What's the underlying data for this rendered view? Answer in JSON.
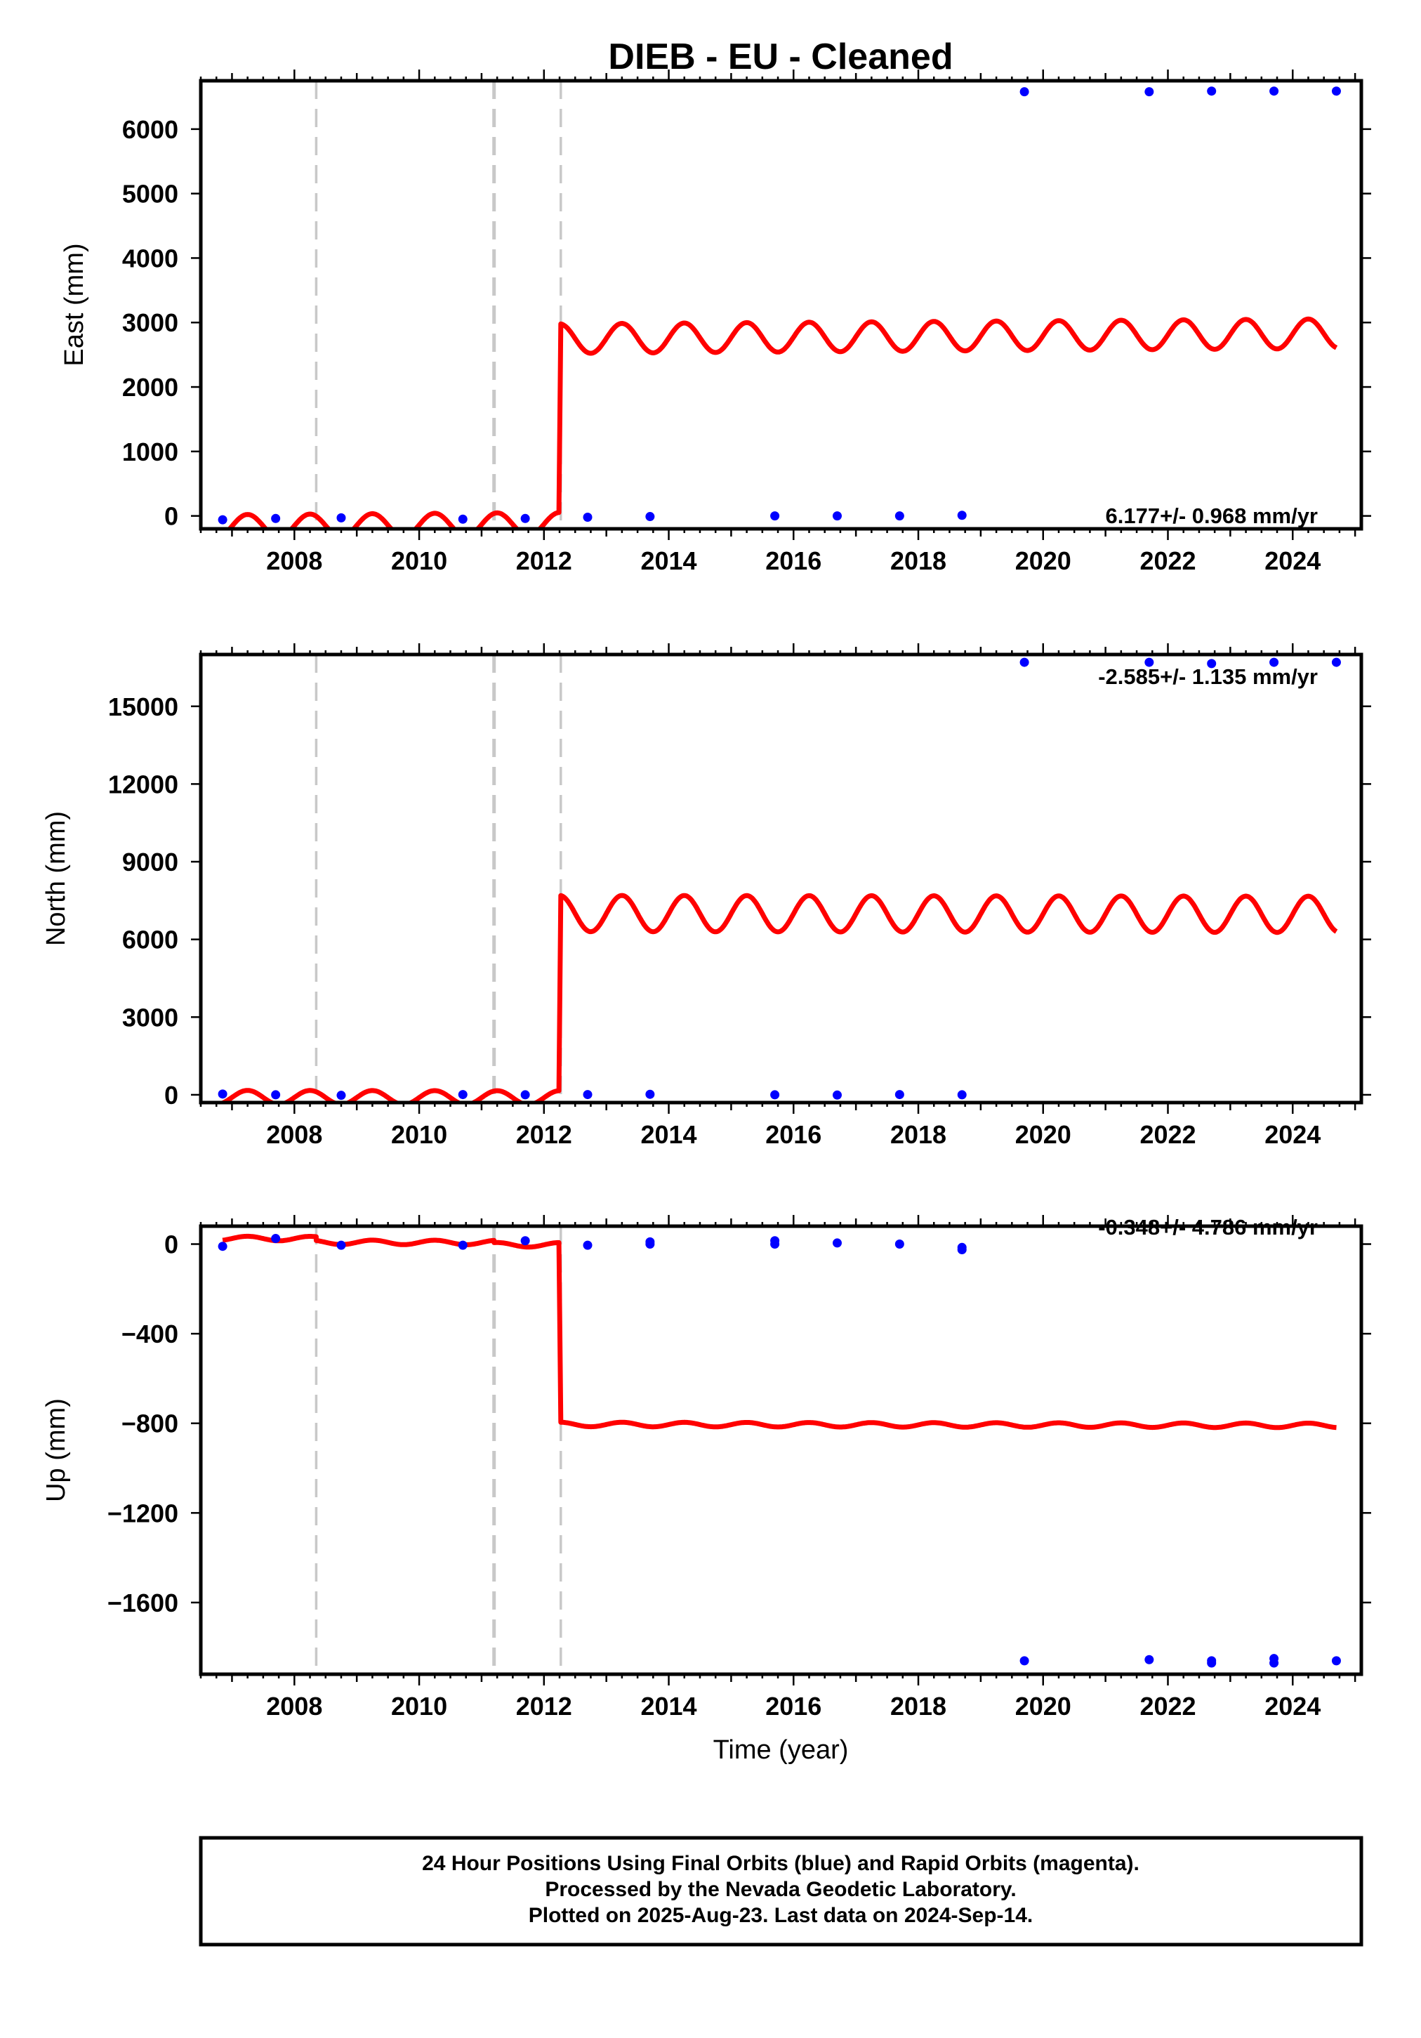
{
  "chart_data": {
    "type": "scatter",
    "title": "DIEB  - EU - Cleaned",
    "xlabel": "Time (year)",
    "xlim": [
      2006.5,
      2025.1
    ],
    "x_ticks": [
      2008,
      2010,
      2012,
      2014,
      2016,
      2018,
      2020,
      2022,
      2024
    ],
    "colors": {
      "observations": "#0000ff",
      "model": "#ff0000",
      "equipment_change": "#c8c8c8"
    },
    "event_lines_x": [
      2008.35,
      2011.2,
      2012.27
    ],
    "footer": [
      "24 Hour Positions Using Final Orbits (blue) and Rapid Orbits (magenta).",
      "Processed by the Nevada Geodetic Laboratory.",
      "Plotted on 2025-Aug-23. Last data on 2024-Sep-14."
    ],
    "panels": [
      {
        "ylabel": "East (mm)",
        "rate": "6.177+/- 0.968 mm/yr",
        "ylim": [
          -200,
          6750
        ],
        "y_ticks": [
          0,
          1000,
          2000,
          3000,
          4000,
          5000,
          6000
        ],
        "y_tick_labels": [
          "0",
          "1000",
          "2000",
          "3000",
          "4000",
          "5000",
          "6000"
        ],
        "series": [
          {
            "kind": "observations",
            "x": [
              2006.85,
              2007.7,
              2008.75,
              2010.7,
              2011.7,
              2012.7,
              2013.7,
              2015.7,
              2016.7,
              2017.7,
              2018.7,
              2019.7,
              2021.7,
              2022.7,
              2023.7,
              2024.7
            ],
            "y": [
              -60,
              -40,
              -30,
              -50,
              -40,
              -20,
              -10,
              0,
              0,
              0,
              10,
              6580,
              6580,
              6590,
              6590,
              6590
            ]
          },
          {
            "kind": "model",
            "segments": [
              {
                "x_start": 2006.85,
                "x_end": 2012.24,
                "offset": -160,
                "amplitude": 180,
                "slope": 6.177
              },
              {
                "x_start": 2012.27,
                "x_end": 2024.7,
                "offset": 2750,
                "amplitude": 230,
                "slope": 6.177
              }
            ]
          }
        ]
      },
      {
        "ylabel": "North (mm)",
        "rate": "-2.585+/- 1.135 mm/yr",
        "ylim": [
          -300,
          17000
        ],
        "y_ticks": [
          0,
          3000,
          6000,
          9000,
          12000,
          15000
        ],
        "y_tick_labels": [
          "0",
          "3000",
          "6000",
          "9000",
          "12000",
          "15000"
        ],
        "series": [
          {
            "kind": "observations",
            "x": [
              2006.85,
              2007.7,
              2008.75,
              2010.7,
              2011.7,
              2012.7,
              2013.7,
              2015.7,
              2016.7,
              2017.7,
              2018.7,
              2019.7,
              2021.7,
              2022.7,
              2023.7,
              2024.7
            ],
            "y": [
              30,
              0,
              -20,
              10,
              0,
              10,
              20,
              0,
              -10,
              10,
              0,
              16700,
              16700,
              16650,
              16700,
              16700
            ]
          },
          {
            "kind": "model",
            "segments": [
              {
                "x_start": 2006.85,
                "x_end": 2012.24,
                "offset": -100,
                "amplitude": 270,
                "slope": -2.585
              },
              {
                "x_start": 2012.27,
                "x_end": 2024.7,
                "offset": 7000,
                "amplitude": 700,
                "slope": -2.585
              }
            ]
          }
        ]
      },
      {
        "ylabel": "Up (mm)",
        "rate": "-0.348+/- 4.786 mm/yr",
        "ylim": [
          -1920,
          80
        ],
        "y_ticks": [
          0,
          -400,
          -800,
          -1200,
          -1600
        ],
        "y_tick_labels": [
          "0",
          "−400",
          "−800",
          "−1200",
          "−1600"
        ],
        "series": [
          {
            "kind": "observations",
            "x": [
              2006.85,
              2007.7,
              2008.75,
              2010.7,
              2011.7,
              2012.7,
              2013.7,
              2013.7,
              2015.7,
              2015.7,
              2016.7,
              2017.7,
              2018.7,
              2018.7,
              2019.7,
              2021.7,
              2022.7,
              2022.7,
              2023.7,
              2023.7,
              2024.7
            ],
            "y": [
              -10,
              25,
              -5,
              -5,
              15,
              -5,
              0,
              10,
              0,
              15,
              5,
              0,
              -15,
              -25,
              -1860,
              -1855,
              -1860,
              -1870,
              -1850,
              -1870,
              -1860
            ]
          },
          {
            "kind": "model",
            "segments": [
              {
                "x_start": 2006.85,
                "x_end": 2008.35,
                "offset": 25,
                "amplitude": 10,
                "slope": -0.348
              },
              {
                "x_start": 2008.35,
                "x_end": 2011.2,
                "offset": 8,
                "amplitude": 10,
                "slope": -0.348
              },
              {
                "x_start": 2011.2,
                "x_end": 2012.24,
                "offset": -3,
                "amplitude": 10,
                "slope": -0.348
              },
              {
                "x_start": 2012.27,
                "x_end": 2024.7,
                "offset": -805,
                "amplitude": 10,
                "slope": -0.348
              }
            ]
          }
        ]
      }
    ]
  }
}
